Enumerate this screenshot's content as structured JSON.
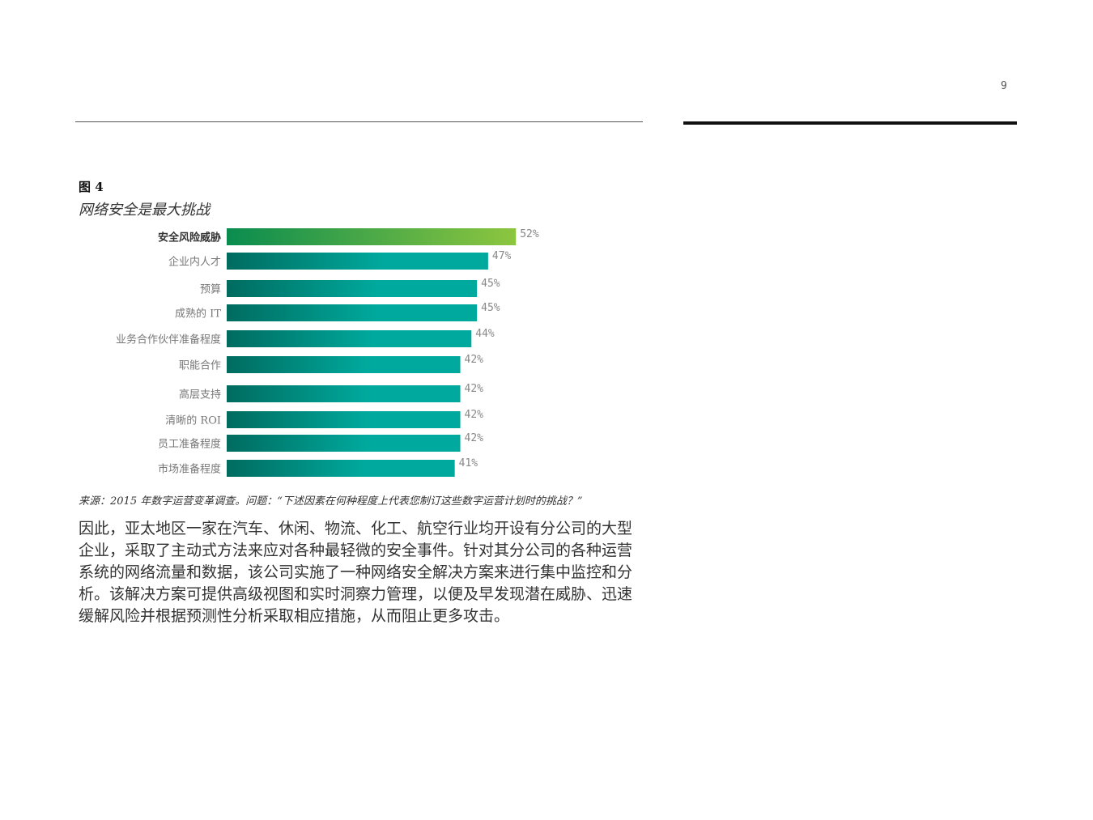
{
  "page_number": "9",
  "figure_label": "图 4",
  "figure_title": "网络安全是最大挑战",
  "chart_data": {
    "type": "bar",
    "orientation": "horizontal",
    "title": "网络安全是最大挑战",
    "categories": [
      "安全风险威胁",
      "企业内人才",
      "预算",
      "成熟的 IT",
      "业务合作伙伴准备程度",
      "职能合作",
      "高层支持",
      "清晰的 ROI",
      "员工准备程度",
      "市场准备程度"
    ],
    "values": [
      52,
      47,
      45,
      45,
      44,
      42,
      42,
      42,
      42,
      41
    ],
    "value_labels": [
      "52%",
      "47%",
      "45%",
      "45%",
      "44%",
      "42%",
      "42%",
      "42%",
      "42%",
      "41%"
    ],
    "unit": "%",
    "highlight_index": 0,
    "colors": {
      "highlight_start": "#0a8c4f",
      "highlight_end": "#8dc63f",
      "bar_start": "#006b5f",
      "bar_end": "#00a99d"
    }
  },
  "source_note": "来源：2015 年数字运营变革调查。问题：“下述因素在何种程度上代表您制订这些数字运营计划时的挑战？”",
  "body_text": "因此，亚太地区一家在汽车、休闲、物流、化工、航空行业均开设有分公司的大型企业，采取了主动式方法来应对各种最轻微的安全事件。针对其分公司的各种运营系统的网络流量和数据，该公司实施了一种网络安全解决方案来进行集中监控和分析。该解决方案可提供高级视图和实时洞察力管理，以便及早发现潜在威胁、迅速缓解风险并根据预测性分析采取相应措施，从而阻止更多攻击。"
}
